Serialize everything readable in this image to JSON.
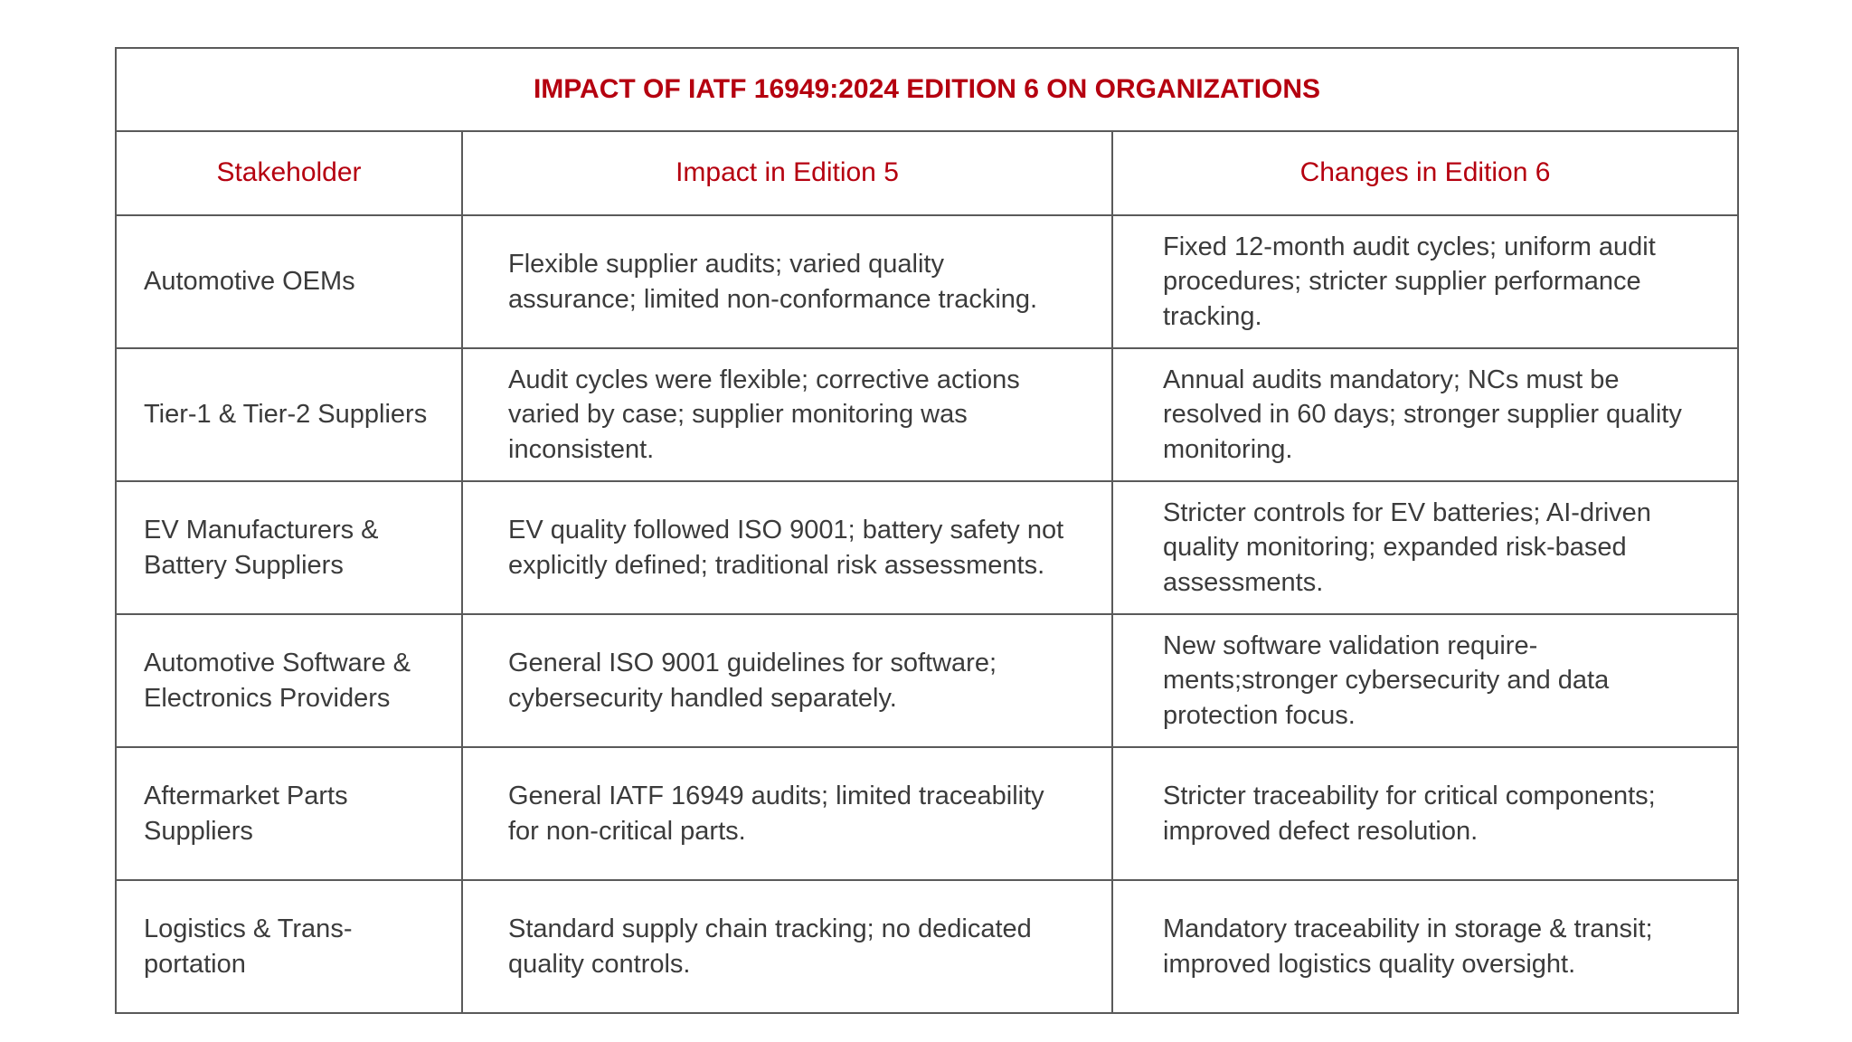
{
  "title": "IMPACT OF IATF 16949:2024 EDITION 6 ON ORGANIZATIONS",
  "headers": [
    "Stakeholder",
    "Impact in Edition 5",
    "Changes in Edition 6"
  ],
  "colors": {
    "accent": "#b5000f",
    "text": "#3b3b3b",
    "border": "#5a5a5a"
  },
  "rows": [
    {
      "stakeholder": "Automotive OEMs",
      "edition5": "Flexible supplier audits; varied quality assurance; limited non-conformance tracking.",
      "edition6": "Fixed 12-month audit cycles; uniform audit procedures; stricter supplier performance tracking."
    },
    {
      "stakeholder": "Tier-1 & Tier-2 Suppliers",
      "edition5": "Audit cycles were flexible; corrective actions varied by case; supplier monitoring was inconsistent.",
      "edition6": "Annual audits mandatory; NCs must be resolved in 60 days; stronger supplier quality monitoring."
    },
    {
      "stakeholder": "EV Manufacturers & Battery Suppliers",
      "edition5": "EV quality followed ISO 9001; battery safety not explicitly defined; traditional risk assessments.",
      "edition6": "Stricter controls for EV batteries; AI-driven quality monitoring; expanded risk-based assessments."
    },
    {
      "stakeholder": "Automotive Software & Electronics Providers",
      "edition5": "General ISO 9001 guidelines for software; cybersecurity handled separately.",
      "edition6": "New software validation require-ments;stronger cybersecurity and data protection focus."
    },
    {
      "stakeholder": "Aftermarket Parts Suppliers",
      "edition5": "General IATF 16949 audits; limited traceability for non-critical parts.",
      "edition6": "Stricter traceability for critical components; improved defect resolution."
    },
    {
      "stakeholder": "Logistics & Trans-portation",
      "edition5": "Standard supply chain tracking; no dedicated quality controls.",
      "edition6": "Mandatory traceability in storage & transit; improved logistics quality oversight."
    }
  ]
}
